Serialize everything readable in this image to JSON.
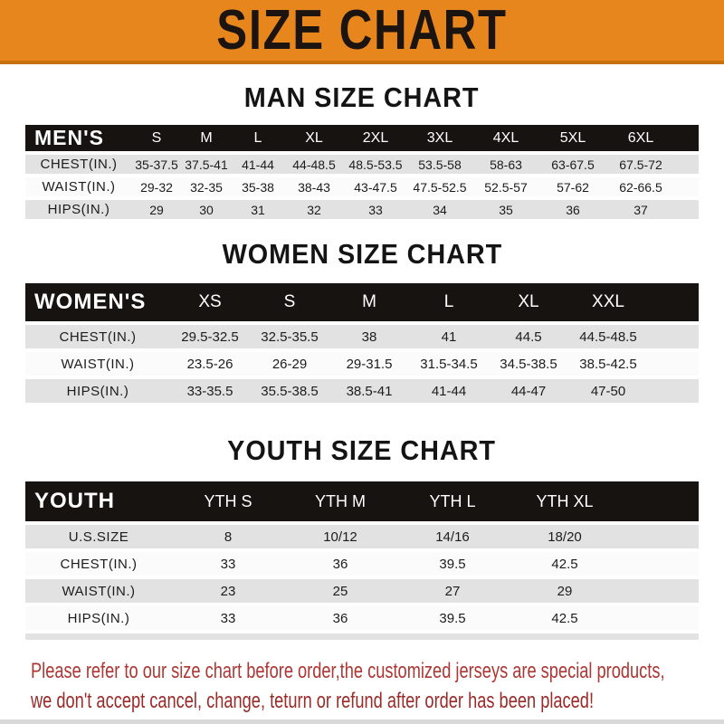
{
  "banner": {
    "title": "SIZE CHART",
    "bg_color": "#E8861E",
    "text_color": "#1B1410"
  },
  "colors": {
    "header_bar_black": "#171310",
    "shaded_row_gray": "#E2E2E2",
    "light_row_white": "#FBFBFB",
    "notice_red": "#A93230"
  },
  "sections": [
    {
      "heading": "MAN SIZE CHART",
      "corner_label": "MEN'S",
      "size_columns": [
        "S",
        "M",
        "L",
        "XL",
        "2XL",
        "3XL",
        "4XL",
        "5XL",
        "6XL"
      ],
      "rows": [
        {
          "label": "CHEST(IN.)",
          "values": [
            "35-37.5",
            "37.5-41",
            "41-44",
            "44-48.5",
            "48.5-53.5",
            "53.5-58",
            "58-63",
            "63-67.5",
            "67.5-72"
          ]
        },
        {
          "label": "WAIST(IN.)",
          "values": [
            "29-32",
            "32-35",
            "35-38",
            "38-43",
            "43-47.5",
            "47.5-52.5",
            "52.5-57",
            "57-62",
            "62-66.5"
          ]
        },
        {
          "label": "HIPS(IN.)",
          "values": [
            "29",
            "30",
            "31",
            "32",
            "33",
            "34",
            "35",
            "36",
            "37"
          ]
        }
      ]
    },
    {
      "heading": "WOMEN SIZE CHART",
      "corner_label": "WOMEN'S",
      "size_columns": [
        "XS",
        "S",
        "M",
        "L",
        "XL",
        "XXL"
      ],
      "rows": [
        {
          "label": "CHEST(IN.)",
          "values": [
            "29.5-32.5",
            "32.5-35.5",
            "38",
            "41",
            "44.5",
            "44.5-48.5"
          ]
        },
        {
          "label": "WAIST(IN.)",
          "values": [
            "23.5-26",
            "26-29",
            "29-31.5",
            "31.5-34.5",
            "34.5-38.5",
            "38.5-42.5"
          ]
        },
        {
          "label": "HIPS(IN.)",
          "values": [
            "33-35.5",
            "35.5-38.5",
            "38.5-41",
            "41-44",
            "44-47",
            "47-50"
          ]
        }
      ]
    },
    {
      "heading": "YOUTH SIZE CHART",
      "corner_label": "YOUTH",
      "size_columns": [
        "YTH S",
        "YTH M",
        "YTH L",
        "YTH XL"
      ],
      "rows": [
        {
          "label": "U.S.SIZE",
          "values": [
            "8",
            "10/12",
            "14/16",
            "18/20"
          ]
        },
        {
          "label": "CHEST(IN.)",
          "values": [
            "33",
            "36",
            "39.5",
            "42.5"
          ]
        },
        {
          "label": "WAIST(IN.)",
          "values": [
            "23",
            "25",
            "27",
            "29"
          ]
        },
        {
          "label": "HIPS(IN.)",
          "values": [
            "33",
            "36",
            "39.5",
            "42.5"
          ]
        }
      ]
    }
  ],
  "notice": {
    "line1": "Please refer to our size chart before order,the customized jerseys are special products,",
    "line2": "we don't accept cancel, change, teturn or refund after order has been placed!"
  }
}
